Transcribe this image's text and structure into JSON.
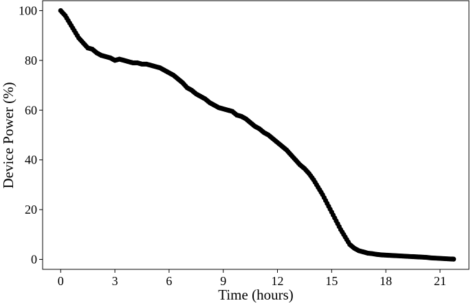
{
  "chart_data": {
    "type": "scatter",
    "title": "",
    "xlabel": "Time (hours)",
    "ylabel": "Device Power (%)",
    "xlim": [
      -1,
      22.6
    ],
    "ylim": [
      -4,
      104
    ],
    "xticks": [
      0,
      3,
      6,
      9,
      12,
      15,
      18,
      21
    ],
    "yticks": [
      0,
      20,
      40,
      60,
      80,
      100
    ],
    "grid": false,
    "marker_color": "#000000",
    "series": [
      {
        "x": [
          0,
          0.25,
          0.5,
          0.75,
          1.0,
          1.25,
          1.5,
          1.75,
          2.0,
          2.25,
          2.5,
          2.75,
          3.0,
          3.25,
          3.5,
          3.75,
          4.0,
          4.25,
          4.5,
          4.75,
          5.0,
          5.25,
          5.5,
          5.75,
          6.0,
          6.25,
          6.5,
          6.75,
          7.0,
          7.25,
          7.5,
          7.75,
          8.0,
          8.25,
          8.5,
          8.75,
          9.0,
          9.25,
          9.5,
          9.75,
          10.0,
          10.25,
          10.5,
          10.75,
          11.0,
          11.25,
          11.5,
          11.75,
          12.0,
          12.25,
          12.5,
          12.75,
          13.0,
          13.25,
          13.5,
          13.75,
          14.0,
          14.25,
          14.5,
          14.75,
          15.0,
          15.25,
          15.5,
          15.75,
          16.0,
          16.25,
          16.5,
          16.75,
          17.0,
          17.25,
          17.5,
          17.75,
          18.0,
          18.25,
          18.5,
          18.75,
          19.0,
          19.25,
          19.5,
          19.75,
          20.0,
          20.25,
          20.5,
          20.75,
          21.0,
          21.25,
          21.5,
          21.75
        ],
        "y": [
          100,
          98,
          95,
          92,
          89,
          87,
          85,
          84.5,
          83,
          82,
          81.5,
          81,
          80,
          80.5,
          80,
          79.5,
          79,
          79,
          78.5,
          78.5,
          78,
          77.5,
          77,
          76,
          75,
          74,
          72.5,
          71,
          69,
          68,
          66.5,
          65.5,
          64.5,
          63,
          62,
          61,
          60.5,
          60,
          59.5,
          58,
          57.5,
          56.5,
          55,
          53.5,
          52.5,
          51,
          50,
          48.5,
          47,
          45.5,
          44,
          42,
          40,
          38,
          36.5,
          34.5,
          32,
          29,
          26,
          22.5,
          19,
          15.5,
          12,
          9,
          6,
          4.5,
          3.5,
          3,
          2.5,
          2.3,
          2,
          1.8,
          1.7,
          1.6,
          1.5,
          1.4,
          1.3,
          1.2,
          1.1,
          1.0,
          0.9,
          0.8,
          0.6,
          0.5,
          0.4,
          0.3,
          0.2,
          0.1
        ]
      }
    ]
  }
}
